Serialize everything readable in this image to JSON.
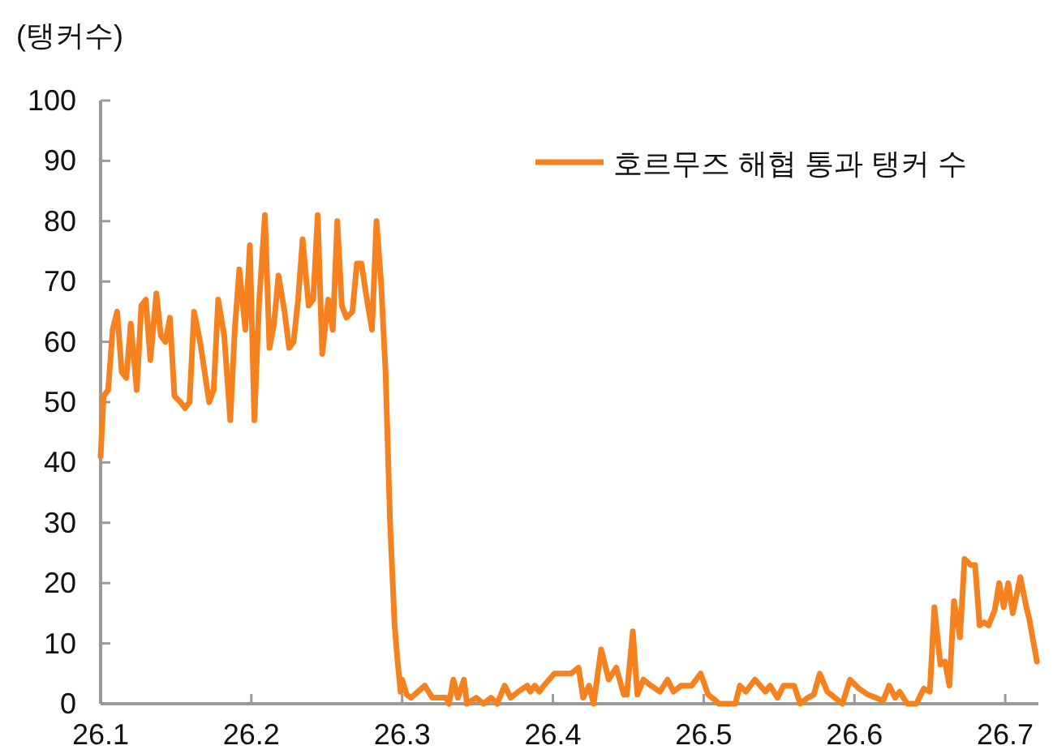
{
  "chart_data": {
    "type": "line",
    "ylabel": "(탱커수)",
    "legend": "top right",
    "grid": false,
    "xlim": [
      26.1,
      26.722
    ],
    "xticks": [
      26.1,
      26.2,
      26.3,
      26.4,
      26.5,
      26.6,
      26.7
    ],
    "ylim": [
      0,
      100
    ],
    "yticks": [
      0,
      10,
      20,
      30,
      40,
      50,
      60,
      70,
      80,
      90,
      100
    ],
    "series": [
      {
        "name": "호르무즈 해협 통과 탱커 수",
        "color": "#f5821f",
        "line_style": "solid",
        "x": [
          26.1,
          26.102,
          26.105,
          26.108,
          26.111,
          26.114,
          26.117,
          26.12,
          26.124,
          26.127,
          26.13,
          26.133,
          26.137,
          26.14,
          26.143,
          26.146,
          26.149,
          26.153,
          26.156,
          26.159,
          26.162,
          26.166,
          26.169,
          26.172,
          26.175,
          26.178,
          26.182,
          26.186,
          26.189,
          26.192,
          26.196,
          26.199,
          26.202,
          26.205,
          26.209,
          26.212,
          26.215,
          26.218,
          26.222,
          26.225,
          26.228,
          26.231,
          26.234,
          26.238,
          26.241,
          26.244,
          26.247,
          26.251,
          26.254,
          26.257,
          26.26,
          26.263,
          26.267,
          26.27,
          26.273,
          26.276,
          26.28,
          26.283,
          26.286,
          26.289,
          26.292,
          26.295,
          26.297,
          26.299,
          26.3,
          26.303,
          26.306,
          26.315,
          26.32,
          26.329,
          26.331,
          26.334,
          26.337,
          26.341,
          26.343,
          26.349,
          26.354,
          26.359,
          26.363,
          26.368,
          26.372,
          26.377,
          26.383,
          26.385,
          26.388,
          26.391,
          26.394,
          26.401,
          26.412,
          26.417,
          26.42,
          26.424,
          26.427,
          26.432,
          26.437,
          26.442,
          26.447,
          26.449,
          26.453,
          26.456,
          26.46,
          26.465,
          26.471,
          26.476,
          26.48,
          26.485,
          26.492,
          26.498,
          26.503,
          26.508,
          26.51,
          26.521,
          26.524,
          26.528,
          26.534,
          26.541,
          26.544,
          26.549,
          26.553,
          26.56,
          26.564,
          26.569,
          26.573,
          26.577,
          26.582,
          26.587,
          26.592,
          26.597,
          26.603,
          26.609,
          26.614,
          26.619,
          26.623,
          26.627,
          26.63,
          26.635,
          26.641,
          26.646,
          26.65,
          26.653,
          26.657,
          26.66,
          26.663,
          26.666,
          26.67,
          26.673,
          26.677,
          26.68,
          26.683,
          26.686,
          26.689,
          26.693,
          26.696,
          26.699,
          26.702,
          26.705,
          26.71,
          26.714,
          26.716,
          26.721
        ],
        "values": [
          41,
          51,
          52,
          62,
          65,
          55,
          54,
          63,
          52,
          66,
          67,
          57,
          68,
          61,
          60,
          64,
          51,
          50,
          49,
          50,
          65,
          60,
          55,
          50,
          52,
          67,
          61,
          47,
          62,
          72,
          62,
          76,
          47,
          66,
          81,
          59,
          63,
          71,
          65,
          59,
          60,
          67,
          77,
          66,
          67,
          81,
          58,
          67,
          62,
          80,
          66,
          64,
          65,
          73,
          73,
          68,
          62,
          80,
          70,
          55,
          30,
          13,
          7,
          2,
          4,
          1.5,
          1,
          3,
          1,
          1,
          0,
          4,
          1,
          4,
          0,
          1,
          0,
          1,
          0,
          3,
          1,
          2,
          3,
          2,
          3,
          2,
          3,
          5,
          5,
          6,
          1,
          3,
          0,
          9,
          4,
          6,
          1.5,
          1.5,
          12,
          1.5,
          4,
          3,
          2,
          4,
          2,
          3,
          3,
          5,
          1.5,
          0.5,
          0,
          0,
          3,
          2,
          4,
          2,
          3,
          1,
          3,
          3,
          0,
          1,
          1.5,
          5,
          2,
          1,
          0,
          4,
          2.5,
          1.5,
          1,
          0.5,
          3,
          1,
          2,
          0,
          0,
          2.5,
          2,
          16,
          6.5,
          7,
          3,
          17,
          11,
          24,
          23,
          23,
          13,
          13.5,
          13,
          15.5,
          20,
          16,
          20,
          15,
          21,
          16,
          14,
          7
        ]
      }
    ]
  }
}
